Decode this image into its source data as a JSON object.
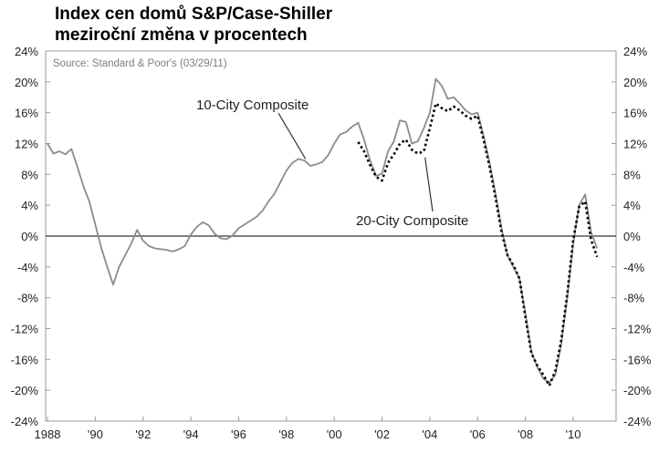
{
  "chart_data": {
    "type": "line",
    "title": "Index cen domů S&P/Case-Shiller",
    "subtitle": "meziroční změna v procentech",
    "source": "Source: Standard & Poor's (03/29/11)",
    "xlabel": "",
    "ylabel": "",
    "xlim": [
      1988,
      2011.5
    ],
    "ylim": [
      -24,
      24
    ],
    "x_ticks": [
      1988,
      1990,
      1992,
      1994,
      1996,
      1998,
      2000,
      2002,
      2004,
      2006,
      2008,
      2010
    ],
    "x_tick_labels": [
      "1988",
      "'90",
      "'92",
      "'94",
      "'96",
      "'98",
      "'00",
      "'02",
      "'04",
      "'06",
      "'08",
      "'10"
    ],
    "y_ticks": [
      -24,
      -20,
      -16,
      -12,
      -8,
      -4,
      0,
      4,
      8,
      12,
      16,
      20,
      24
    ],
    "y_tick_labels": [
      "-24%",
      "-20%",
      "-16%",
      "-12%",
      "-8%",
      "-4%",
      "0%",
      "4%",
      "8%",
      "12%",
      "16%",
      "20%",
      "24%"
    ],
    "grid": false,
    "zero_line": true,
    "annotations": [
      {
        "text": "10-City Composite",
        "series": 0,
        "point_x": 1998.8,
        "point_y": 10.0
      },
      {
        "text": "20-City Composite",
        "series": 1,
        "point_x": 2003.8,
        "point_y": 10.2
      }
    ],
    "series": [
      {
        "name": "10-City Composite",
        "color": "#8c8c8c",
        "style": "solid",
        "x": [
          1988.0,
          1988.25,
          1988.5,
          1988.75,
          1989.0,
          1989.25,
          1989.5,
          1989.75,
          1990.0,
          1990.25,
          1990.5,
          1990.75,
          1991.0,
          1991.25,
          1991.5,
          1991.75,
          1992.0,
          1992.25,
          1992.5,
          1992.75,
          1993.0,
          1993.25,
          1993.5,
          1993.75,
          1994.0,
          1994.25,
          1994.5,
          1994.75,
          1995.0,
          1995.25,
          1995.5,
          1995.75,
          1996.0,
          1996.25,
          1996.5,
          1996.75,
          1997.0,
          1997.25,
          1997.5,
          1997.75,
          1998.0,
          1998.25,
          1998.5,
          1998.75,
          1999.0,
          1999.25,
          1999.5,
          1999.75,
          2000.0,
          2000.25,
          2000.5,
          2000.75,
          2001.0,
          2001.25,
          2001.5,
          2001.75,
          2002.0,
          2002.25,
          2002.5,
          2002.75,
          2003.0,
          2003.25,
          2003.5,
          2003.75,
          2004.0,
          2004.25,
          2004.5,
          2004.75,
          2005.0,
          2005.25,
          2005.5,
          2005.75,
          2006.0,
          2006.25,
          2006.5,
          2006.75,
          2007.0,
          2007.25,
          2007.5,
          2007.75,
          2008.0,
          2008.25,
          2008.5,
          2008.75,
          2009.0,
          2009.25,
          2009.5,
          2009.75,
          2010.0,
          2010.25,
          2010.5,
          2010.75,
          2011.0
        ],
        "values": [
          12.0,
          10.7,
          11.0,
          10.6,
          11.3,
          9.0,
          6.5,
          4.5,
          1.5,
          -1.5,
          -4.0,
          -6.3,
          -4.0,
          -2.5,
          -1.0,
          0.8,
          -0.6,
          -1.3,
          -1.6,
          -1.7,
          -1.8,
          -2.0,
          -1.7,
          -1.3,
          0.2,
          1.2,
          1.8,
          1.4,
          0.3,
          -0.3,
          -0.4,
          0.1,
          1.0,
          1.5,
          2.0,
          2.5,
          3.3,
          4.5,
          5.5,
          7.0,
          8.5,
          9.5,
          10.0,
          9.8,
          9.1,
          9.3,
          9.6,
          10.5,
          12.0,
          13.2,
          13.5,
          14.2,
          14.7,
          12.5,
          9.8,
          7.8,
          8.1,
          11.0,
          12.3,
          15.0,
          14.8,
          12.0,
          12.3,
          14.0,
          16.0,
          20.4,
          19.5,
          17.8,
          18.0,
          17.2,
          16.3,
          15.8,
          16.0,
          13.0,
          9.5,
          5.5,
          1.0,
          -2.5,
          -4.0,
          -5.5,
          -10.0,
          -15.0,
          -17.0,
          -18.5,
          -19.0,
          -18.0,
          -14.0,
          -8.0,
          -1.0,
          4.0,
          5.4,
          0.5,
          -1.6
        ]
      },
      {
        "name": "20-City Composite",
        "color": "#000000",
        "style": "dotted",
        "x": [
          2001.0,
          2001.25,
          2001.5,
          2001.75,
          2002.0,
          2002.25,
          2002.5,
          2002.75,
          2003.0,
          2003.25,
          2003.5,
          2003.75,
          2004.0,
          2004.25,
          2004.5,
          2004.75,
          2005.0,
          2005.25,
          2005.5,
          2005.75,
          2006.0,
          2006.25,
          2006.5,
          2006.75,
          2007.0,
          2007.25,
          2007.5,
          2007.75,
          2008.0,
          2008.25,
          2008.5,
          2008.75,
          2009.0,
          2009.25,
          2009.5,
          2009.75,
          2010.0,
          2010.25,
          2010.5,
          2010.75,
          2011.0
        ],
        "values": [
          12.2,
          11.0,
          9.2,
          7.7,
          7.2,
          9.5,
          10.6,
          12.0,
          12.5,
          11.2,
          10.7,
          11.0,
          14.0,
          17.2,
          16.6,
          16.2,
          16.8,
          16.3,
          15.6,
          15.2,
          15.6,
          12.5,
          9.0,
          5.0,
          0.5,
          -2.5,
          -3.8,
          -5.5,
          -10.5,
          -15.2,
          -16.8,
          -18.0,
          -19.4,
          -17.5,
          -13.5,
          -7.5,
          -0.5,
          3.8,
          4.5,
          -0.5,
          -2.7
        ]
      }
    ]
  }
}
